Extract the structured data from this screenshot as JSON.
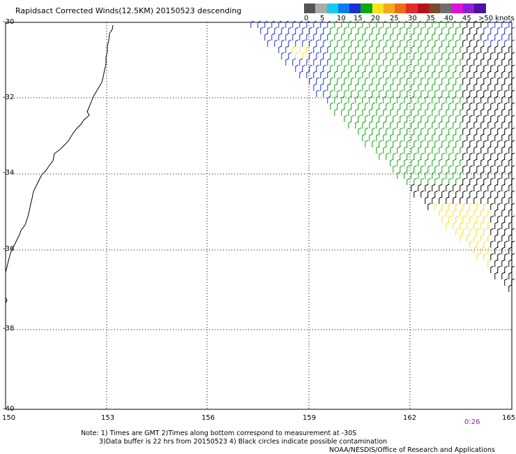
{
  "title": "Rapidsact Corrected Winds(12.5KM) 20150523 descending",
  "legend": {
    "swatches": [
      "#555555",
      "#ababab",
      "#17c7ee",
      "#0d7cf0",
      "#1a2fd6",
      "#0aa80a",
      "#f8e21a",
      "#f6a91c",
      "#ee6d17",
      "#e52b2a",
      "#b5121e",
      "#7a4a2a",
      "#6e6e6e",
      "#d915d9",
      "#8d1ed9",
      "#510f9f"
    ],
    "labels": [
      "0",
      "5",
      "10",
      "15",
      "20",
      "25",
      "30",
      "35",
      "40",
      "45",
      ">50 knots"
    ]
  },
  "lat_labels": [
    "-30",
    "-32",
    "-34",
    "-36",
    "-38",
    "-40"
  ],
  "lon_labels": [
    "150",
    "153",
    "156",
    "159",
    "162",
    "165"
  ],
  "pass_time": "0:26",
  "notes": [
    "Note: 1) Times are GMT 2)Times along bottom correspond to measurement at -30S",
    "3)Data buffer is 22 hrs from 20150523 4) Black circles indicate possible contamination",
    "NOAA/NESDIS/Office of Research and Applications"
  ],
  "barb_colors": {
    "calm": "#000000",
    "moderate": "#0aa80a",
    "fresh": "#1a2fd6",
    "strong": "#f8e21a"
  }
}
